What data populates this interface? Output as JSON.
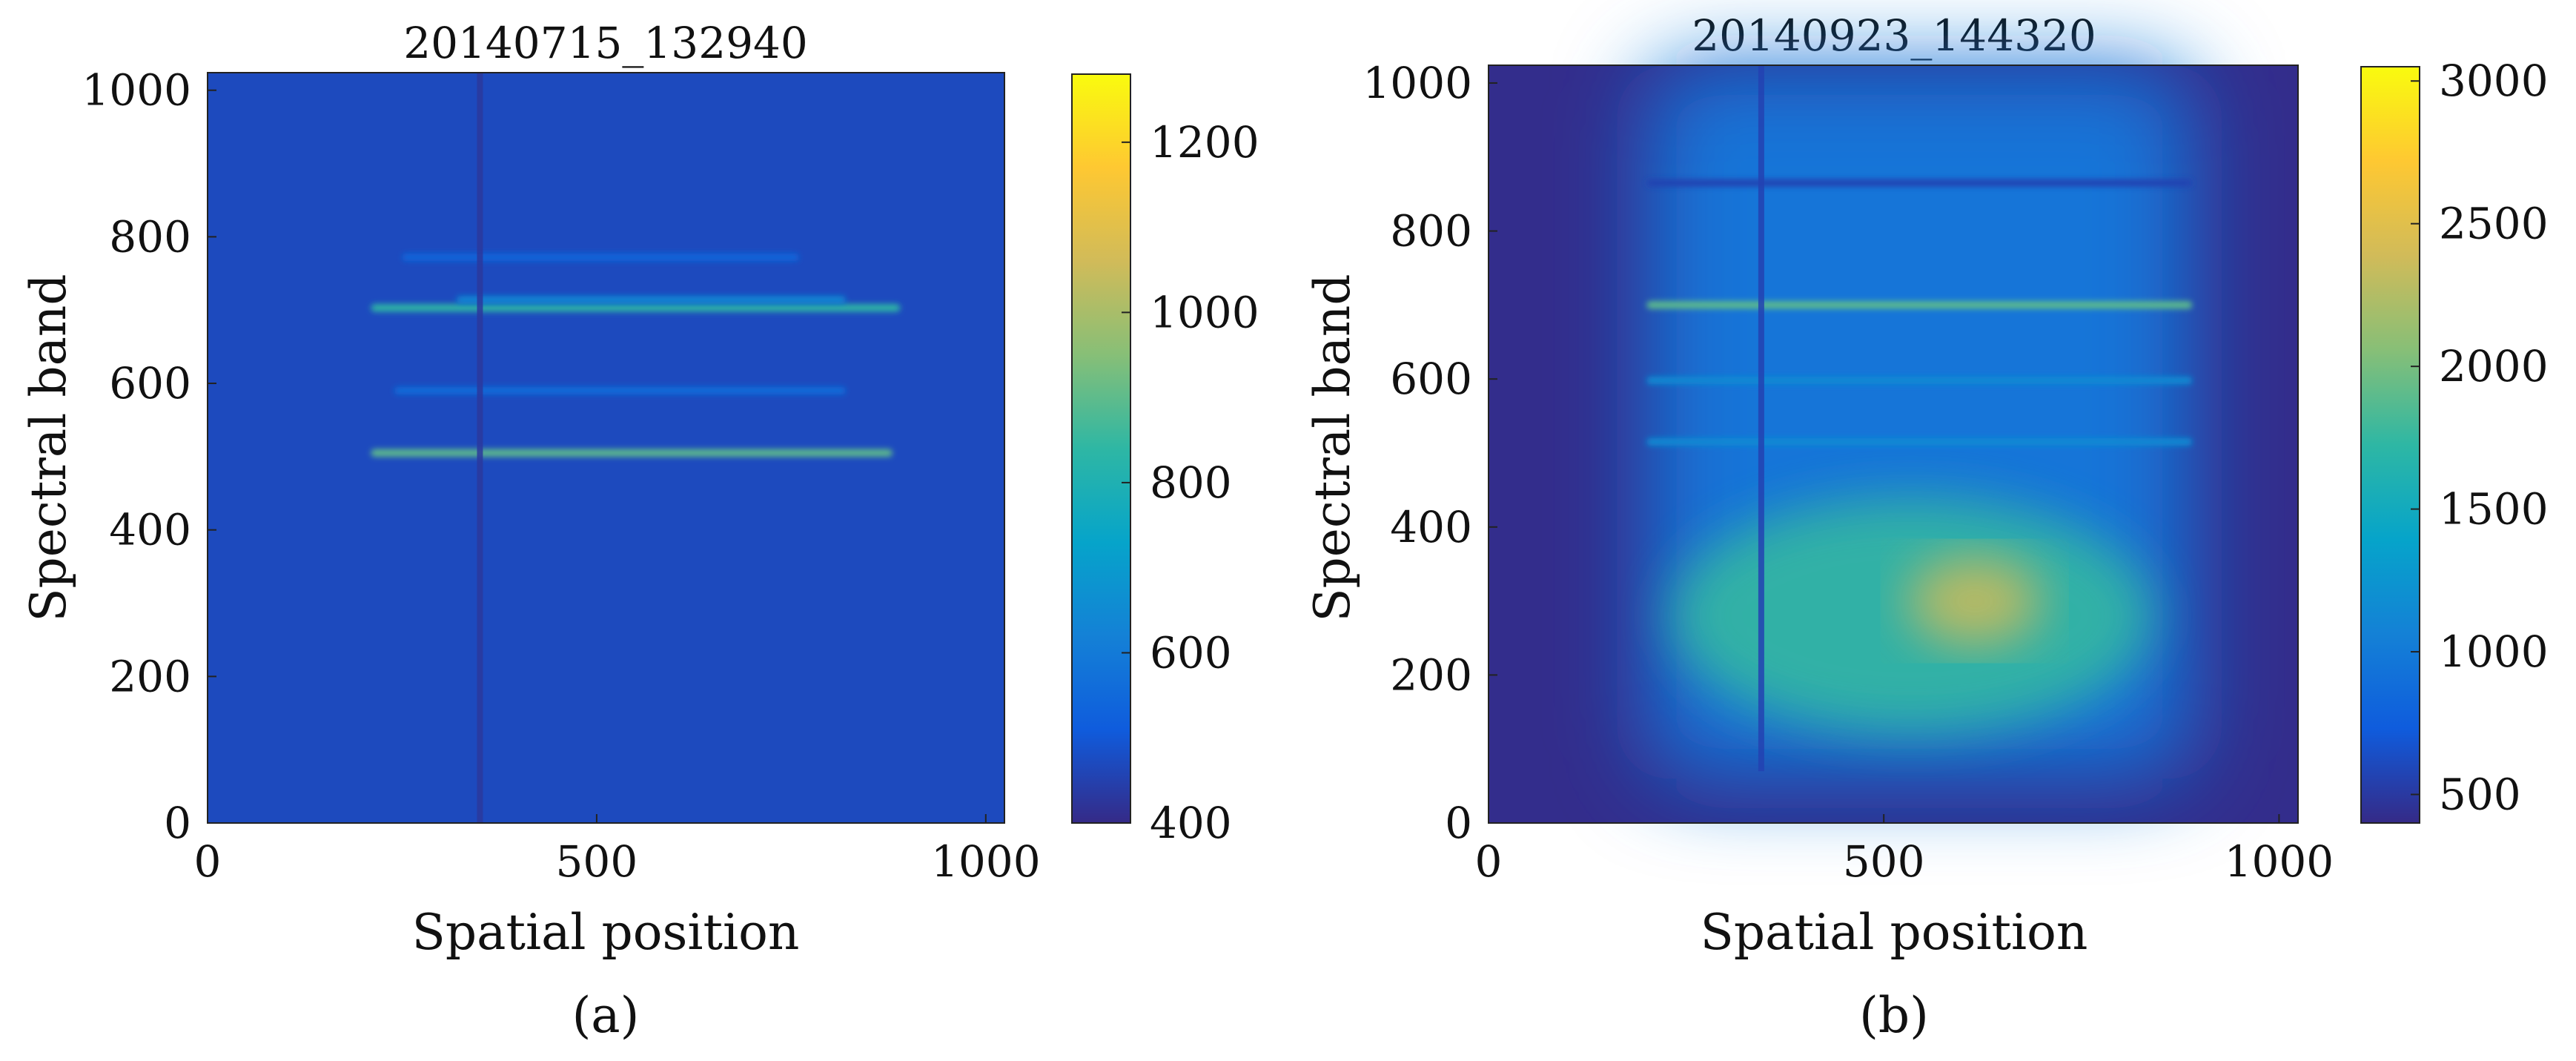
{
  "chart_data": [
    {
      "type": "heatmap",
      "panel_label": "(a)",
      "title": "20140715_132940",
      "xlabel": "Spatial position",
      "ylabel": "Spectral band",
      "xlim": [
        0,
        1024
      ],
      "ylim": [
        0,
        1024
      ],
      "xticks": [
        0,
        500,
        1000
      ],
      "yticks": [
        0,
        200,
        400,
        600,
        800,
        1000
      ],
      "colorbar": {
        "colormap": "parula",
        "range": [
          400,
          1280
        ],
        "ticks": [
          400,
          600,
          800,
          1000,
          1200
        ]
      },
      "background_value": 470,
      "dark_columns": [
        {
          "x": 350,
          "y_start": 0,
          "y_end": 1024,
          "value": 430
        }
      ],
      "features": [
        {
          "kind": "band",
          "x_start": 210,
          "x_end": 880,
          "y": 505,
          "value": 900
        },
        {
          "kind": "band",
          "x_start": 210,
          "x_end": 890,
          "y": 703,
          "value": 840
        },
        {
          "kind": "band",
          "x_start": 320,
          "x_end": 820,
          "y": 714,
          "value": 640
        },
        {
          "kind": "band",
          "x_start": 240,
          "x_end": 820,
          "y": 590,
          "value": 560
        },
        {
          "kind": "band",
          "x_start": 250,
          "x_end": 760,
          "y": 772,
          "value": 540
        }
      ]
    },
    {
      "type": "heatmap",
      "panel_label": "(b)",
      "title": "20140923_144320",
      "xlabel": "Spatial position",
      "ylabel": "Spectral band",
      "xlim": [
        0,
        1024
      ],
      "ylim": [
        0,
        1024
      ],
      "xticks": [
        0,
        500,
        1000
      ],
      "yticks": [
        0,
        200,
        400,
        600,
        800,
        1000
      ],
      "colorbar": {
        "colormap": "parula",
        "range": [
          400,
          3050
        ],
        "ticks": [
          500,
          1000,
          1500,
          2000,
          2500,
          3000
        ]
      },
      "background_value": 420,
      "illuminated_region": {
        "x_start": 200,
        "x_end": 890,
        "y_start": 60,
        "y_end": 1024,
        "value": 950
      },
      "dark_columns": [
        {
          "x": 345,
          "y_start": 70,
          "y_end": 1024,
          "value": 560
        }
      ],
      "features": [
        {
          "kind": "band",
          "x_start": 200,
          "x_end": 890,
          "y": 700,
          "value": 1900
        },
        {
          "kind": "band",
          "x_start": 200,
          "x_end": 890,
          "y": 865,
          "value": 560
        },
        {
          "kind": "band",
          "x_start": 200,
          "x_end": 890,
          "y": 598,
          "value": 1150
        },
        {
          "kind": "band",
          "x_start": 200,
          "x_end": 890,
          "y": 515,
          "value": 1150
        },
        {
          "kind": "blob",
          "x_start": 230,
          "x_end": 840,
          "y_start": 120,
          "y_end": 440,
          "value": 1750
        },
        {
          "kind": "blob",
          "x_start": 530,
          "x_end": 700,
          "y_start": 240,
          "y_end": 360,
          "value": 2350
        }
      ]
    }
  ]
}
